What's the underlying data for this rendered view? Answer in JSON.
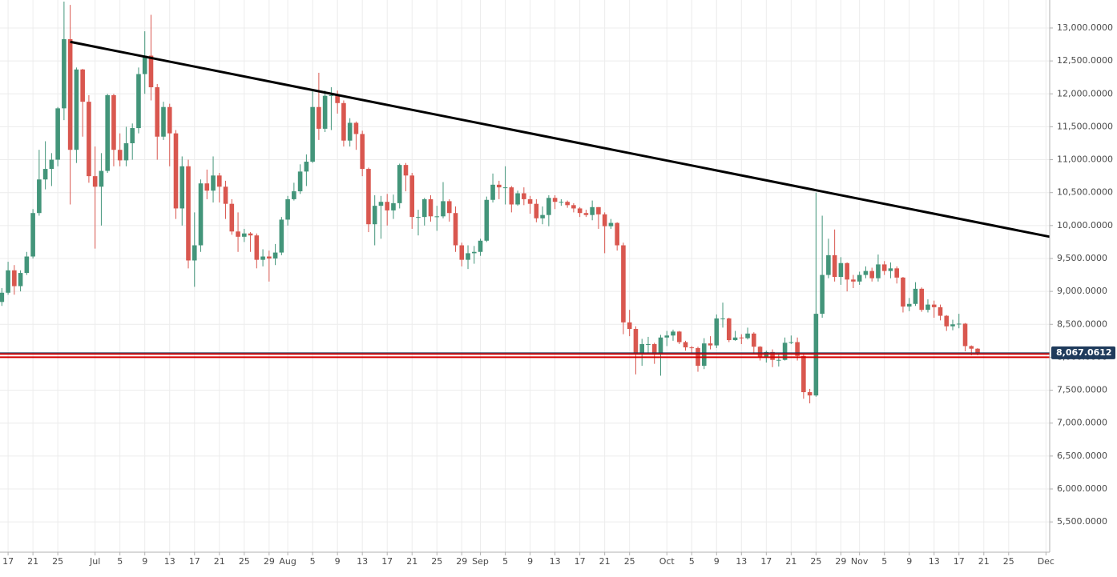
{
  "chart_data": {
    "type": "candlestick",
    "up_color": "#43957a",
    "down_color": "#d9574f",
    "grid": true,
    "xlim": [
      -1.3,
      167.6
    ],
    "ylim": [
      5040,
      13425
    ],
    "xticks": [
      {
        "value": 0,
        "label": "17"
      },
      {
        "value": 4,
        "label": "21"
      },
      {
        "value": 8,
        "label": "25"
      },
      {
        "value": 14,
        "label": "Jul"
      },
      {
        "value": 18,
        "label": "5"
      },
      {
        "value": 22,
        "label": "9"
      },
      {
        "value": 26,
        "label": "13"
      },
      {
        "value": 30,
        "label": "17"
      },
      {
        "value": 34,
        "label": "21"
      },
      {
        "value": 38,
        "label": "25"
      },
      {
        "value": 42,
        "label": "29"
      },
      {
        "value": 45,
        "label": "Aug"
      },
      {
        "value": 49,
        "label": "5"
      },
      {
        "value": 53,
        "label": "9"
      },
      {
        "value": 57,
        "label": "13"
      },
      {
        "value": 61,
        "label": "17"
      },
      {
        "value": 65,
        "label": "21"
      },
      {
        "value": 69,
        "label": "25"
      },
      {
        "value": 73,
        "label": "29"
      },
      {
        "value": 76,
        "label": "Sep"
      },
      {
        "value": 80,
        "label": "5"
      },
      {
        "value": 84,
        "label": "9"
      },
      {
        "value": 88,
        "label": "13"
      },
      {
        "value": 92,
        "label": "17"
      },
      {
        "value": 96,
        "label": "21"
      },
      {
        "value": 100,
        "label": "25"
      },
      {
        "value": 106,
        "label": "Oct"
      },
      {
        "value": 110,
        "label": "5"
      },
      {
        "value": 114,
        "label": "9"
      },
      {
        "value": 118,
        "label": "13"
      },
      {
        "value": 122,
        "label": "17"
      },
      {
        "value": 126,
        "label": "21"
      },
      {
        "value": 130,
        "label": "25"
      },
      {
        "value": 134,
        "label": "29"
      },
      {
        "value": 137,
        "label": "Nov"
      },
      {
        "value": 141,
        "label": "5"
      },
      {
        "value": 145,
        "label": "9"
      },
      {
        "value": 149,
        "label": "13"
      },
      {
        "value": 153,
        "label": "17"
      },
      {
        "value": 157,
        "label": "21"
      },
      {
        "value": 161,
        "label": "25"
      },
      {
        "value": 167,
        "label": "Dec"
      }
    ],
    "yticks": [
      {
        "value": 5500,
        "label": "5,500.0000"
      },
      {
        "value": 6000,
        "label": "6,000.0000"
      },
      {
        "value": 6500,
        "label": "6,500.0000"
      },
      {
        "value": 7000,
        "label": "7,000.0000"
      },
      {
        "value": 7500,
        "label": "7,500.0000"
      },
      {
        "value": 8000,
        "label": "8,000.0000"
      },
      {
        "value": 8500,
        "label": "8,500.0000"
      },
      {
        "value": 9000,
        "label": "9,000.0000"
      },
      {
        "value": 9500,
        "label": "9,500.0000"
      },
      {
        "value": 10000,
        "label": "10,000.0000"
      },
      {
        "value": 10500,
        "label": "10,500.0000"
      },
      {
        "value": 11000,
        "label": "11,000.0000"
      },
      {
        "value": 11500,
        "label": "11,500.0000"
      },
      {
        "value": 12000,
        "label": "12,000.0000"
      },
      {
        "value": 12500,
        "label": "12,500.0000"
      },
      {
        "value": 13000,
        "label": "13,000.0000"
      }
    ],
    "last_price": {
      "value": 8067.0612,
      "label": "8,067.0612",
      "color": "#1f3b5c"
    },
    "hlines": [
      {
        "value": 8050,
        "color": "#d50000"
      },
      {
        "value": 8000,
        "color": "#d50000"
      }
    ],
    "trendline": {
      "x": [
        10,
        167.6
      ],
      "y": [
        12790,
        9830
      ],
      "color": "#000000"
    },
    "x": [
      -1,
      0,
      1,
      2,
      3,
      4,
      5,
      6,
      7,
      8,
      9,
      10,
      11,
      12,
      13,
      14,
      15,
      16,
      17,
      18,
      19,
      20,
      21,
      22,
      23,
      24,
      25,
      26,
      27,
      28,
      29,
      30,
      31,
      32,
      33,
      34,
      35,
      36,
      37,
      38,
      39,
      40,
      41,
      42,
      43,
      44,
      45,
      46,
      47,
      48,
      49,
      50,
      51,
      52,
      53,
      54,
      55,
      56,
      57,
      58,
      59,
      60,
      61,
      62,
      63,
      64,
      65,
      66,
      67,
      68,
      69,
      70,
      71,
      72,
      73,
      74,
      75,
      76,
      77,
      78,
      79,
      80,
      81,
      82,
      83,
      84,
      85,
      86,
      87,
      88,
      89,
      90,
      91,
      92,
      93,
      94,
      95,
      96,
      97,
      98,
      99,
      100,
      101,
      102,
      103,
      104,
      105,
      106,
      107,
      108,
      109,
      110,
      111,
      112,
      113,
      114,
      115,
      116,
      117,
      118,
      119,
      120,
      121,
      122,
      123,
      124,
      125,
      126,
      127,
      128,
      129,
      130,
      131,
      132,
      133,
      134,
      135,
      136,
      137,
      138,
      139,
      140,
      141,
      142,
      143,
      144,
      145,
      146,
      147,
      148,
      149,
      150,
      151,
      152,
      153,
      154,
      155,
      156
    ],
    "open": [
      8840,
      8980,
      9320,
      9080,
      9280,
      9530,
      10190,
      10700,
      10860,
      11000,
      11780,
      12830,
      11150,
      12370,
      11880,
      10750,
      10590,
      10830,
      11980,
      11150,
      10990,
      11250,
      11480,
      12300,
      12580,
      12100,
      11350,
      11800,
      11400,
      10260,
      10900,
      9470,
      9700,
      10640,
      10530,
      10760,
      10590,
      10330,
      9910,
      9830,
      9880,
      9850,
      9480,
      9530,
      9500,
      9590,
      10090,
      10400,
      10520,
      10820,
      10970,
      11800,
      11470,
      11970,
      11980,
      11860,
      11290,
      11560,
      11390,
      10860,
      10020,
      10300,
      10360,
      10230,
      10340,
      10920,
      10760,
      10130,
      10130,
      10400,
      10140,
      10140,
      10370,
      10190,
      9700,
      9480,
      9580,
      9600,
      9770,
      10390,
      10620,
      10580,
      10580,
      10320,
      10490,
      10400,
      10330,
      10110,
      10160,
      10420,
      10360,
      10360,
      10310,
      10260,
      10190,
      10160,
      10280,
      10170,
      9990,
      10040,
      9700,
      8530,
      8430,
      8060,
      8200,
      8200,
      8040,
      8300,
      8330,
      8390,
      8230,
      8150,
      8140,
      7870,
      8210,
      8180,
      8590,
      8590,
      8260,
      8300,
      8290,
      8360,
      8160,
      8000,
      8080,
      7960,
      7960,
      8220,
      8230,
      8020,
      7470,
      7420,
      8660,
      9250,
      9550,
      9220,
      9430,
      9180,
      9150,
      9250,
      9310,
      9200,
      9410,
      9310,
      9350,
      9210,
      8770,
      8810,
      9040,
      8720,
      8800,
      8760,
      8630,
      8470,
      8500,
      8510,
      8170,
      8130
    ],
    "high": [
      9050,
      9450,
      9400,
      9320,
      9600,
      10250,
      11150,
      11280,
      11100,
      11800,
      13400,
      13350,
      12400,
      12380,
      11980,
      11200,
      11100,
      12000,
      12000,
      11400,
      11500,
      11550,
      12400,
      12950,
      13200,
      12150,
      11880,
      11850,
      11450,
      11050,
      11000,
      10200,
      10700,
      10850,
      11050,
      10800,
      10680,
      10400,
      10200,
      9950,
      9900,
      9880,
      9640,
      9620,
      9720,
      10130,
      10450,
      10650,
      10930,
      11080,
      12050,
      12320,
      12050,
      12100,
      12050,
      11900,
      11630,
      11580,
      11440,
      10880,
      10460,
      10450,
      10480,
      10470,
      10940,
      10950,
      10800,
      10240,
      10420,
      10460,
      10300,
      10660,
      10400,
      10290,
      9740,
      9700,
      9690,
      9800,
      10440,
      10790,
      10680,
      10900,
      10600,
      10530,
      10580,
      10450,
      10400,
      10290,
      10460,
      10460,
      10400,
      10380,
      10340,
      10280,
      10240,
      10380,
      10280,
      10200,
      10100,
      10050,
      9740,
      8720,
      8470,
      8280,
      8310,
      8220,
      8340,
      8400,
      8420,
      8400,
      8250,
      8170,
      8160,
      8290,
      8320,
      8650,
      8830,
      8600,
      8400,
      8350,
      8450,
      8380,
      8170,
      8100,
      8120,
      8050,
      8300,
      8330,
      8300,
      8050,
      7520,
      10500,
      10150,
      9800,
      9940,
      9520,
      9440,
      9250,
      9300,
      9380,
      9360,
      9560,
      9460,
      9440,
      9380,
      9220,
      8900,
      9140,
      9060,
      8880,
      8860,
      8800,
      8640,
      8570,
      8660,
      8520,
      8180,
      8140
    ],
    "low": [
      8780,
      8950,
      8950,
      9000,
      9250,
      9500,
      10150,
      10550,
      10600,
      10900,
      11600,
      10320,
      10950,
      11350,
      10650,
      9650,
      10000,
      10800,
      10900,
      10900,
      10900,
      11000,
      11400,
      12000,
      11900,
      11000,
      11300,
      10900,
      10100,
      10000,
      9350,
      9070,
      9600,
      10400,
      10350,
      10350,
      10100,
      9860,
      9600,
      9750,
      9600,
      9350,
      9380,
      9150,
      9400,
      9550,
      10000,
      10380,
      10480,
      10600,
      10950,
      11300,
      11420,
      11450,
      11700,
      11200,
      11200,
      11150,
      10750,
      9900,
      9700,
      9800,
      10000,
      10100,
      10260,
      10520,
      9950,
      9850,
      10000,
      10060,
      9920,
      10110,
      10060,
      9600,
      9380,
      9340,
      9420,
      9540,
      9750,
      10350,
      10400,
      10320,
      10200,
      10300,
      10310,
      10180,
      10050,
      10020,
      9990,
      10250,
      10300,
      10270,
      10200,
      10130,
      10130,
      10080,
      9950,
      9580,
      9950,
      9620,
      8350,
      8320,
      7740,
      7870,
      8060,
      7900,
      7720,
      8170,
      8250,
      8200,
      8100,
      8050,
      7780,
      7820,
      8120,
      8140,
      8450,
      8230,
      8250,
      8200,
      8270,
      8050,
      7950,
      7920,
      7850,
      7860,
      7950,
      8200,
      7950,
      7370,
      7300,
      7400,
      8600,
      9200,
      9150,
      9100,
      9000,
      9050,
      9100,
      9200,
      9150,
      9150,
      9250,
      9200,
      9120,
      8680,
      8700,
      8780,
      8690,
      8680,
      8600,
      8560,
      8400,
      8410,
      8440,
      8090,
      8030,
      8030
    ],
    "close": [
      8980,
      9320,
      9080,
      9280,
      9530,
      10190,
      10700,
      10860,
      11000,
      11780,
      12830,
      11150,
      12370,
      11880,
      10750,
      10590,
      10830,
      11980,
      11150,
      10990,
      11250,
      11480,
      12300,
      12580,
      12100,
      11350,
      11800,
      11400,
      10260,
      10900,
      9470,
      9700,
      10640,
      10530,
      10760,
      10590,
      10330,
      9910,
      9830,
      9880,
      9850,
      9480,
      9530,
      9500,
      9590,
      10090,
      10400,
      10520,
      10820,
      10970,
      11800,
      11470,
      11970,
      11980,
      11860,
      11290,
      11560,
      11390,
      10860,
      10020,
      10300,
      10360,
      10230,
      10340,
      10920,
      10760,
      10130,
      10130,
      10400,
      10140,
      10140,
      10370,
      10190,
      9700,
      9480,
      9580,
      9600,
      9770,
      10390,
      10620,
      10580,
      10580,
      10320,
      10490,
      10400,
      10330,
      10110,
      10160,
      10420,
      10360,
      10360,
      10310,
      10260,
      10190,
      10160,
      10280,
      10170,
      9990,
      10040,
      9700,
      8530,
      8430,
      8060,
      8200,
      8200,
      8040,
      8300,
      8330,
      8390,
      8230,
      8150,
      8140,
      7870,
      8210,
      8180,
      8590,
      8590,
      8260,
      8300,
      8290,
      8360,
      8160,
      8000,
      8080,
      7960,
      7960,
      8220,
      8230,
      8020,
      7470,
      7420,
      8660,
      9250,
      9550,
      9220,
      9430,
      9180,
      9150,
      9250,
      9310,
      9200,
      9410,
      9310,
      9350,
      9210,
      8770,
      8810,
      9040,
      8720,
      8800,
      8760,
      8630,
      8470,
      8500,
      8510,
      8170,
      8130,
      8067.0612
    ]
  }
}
